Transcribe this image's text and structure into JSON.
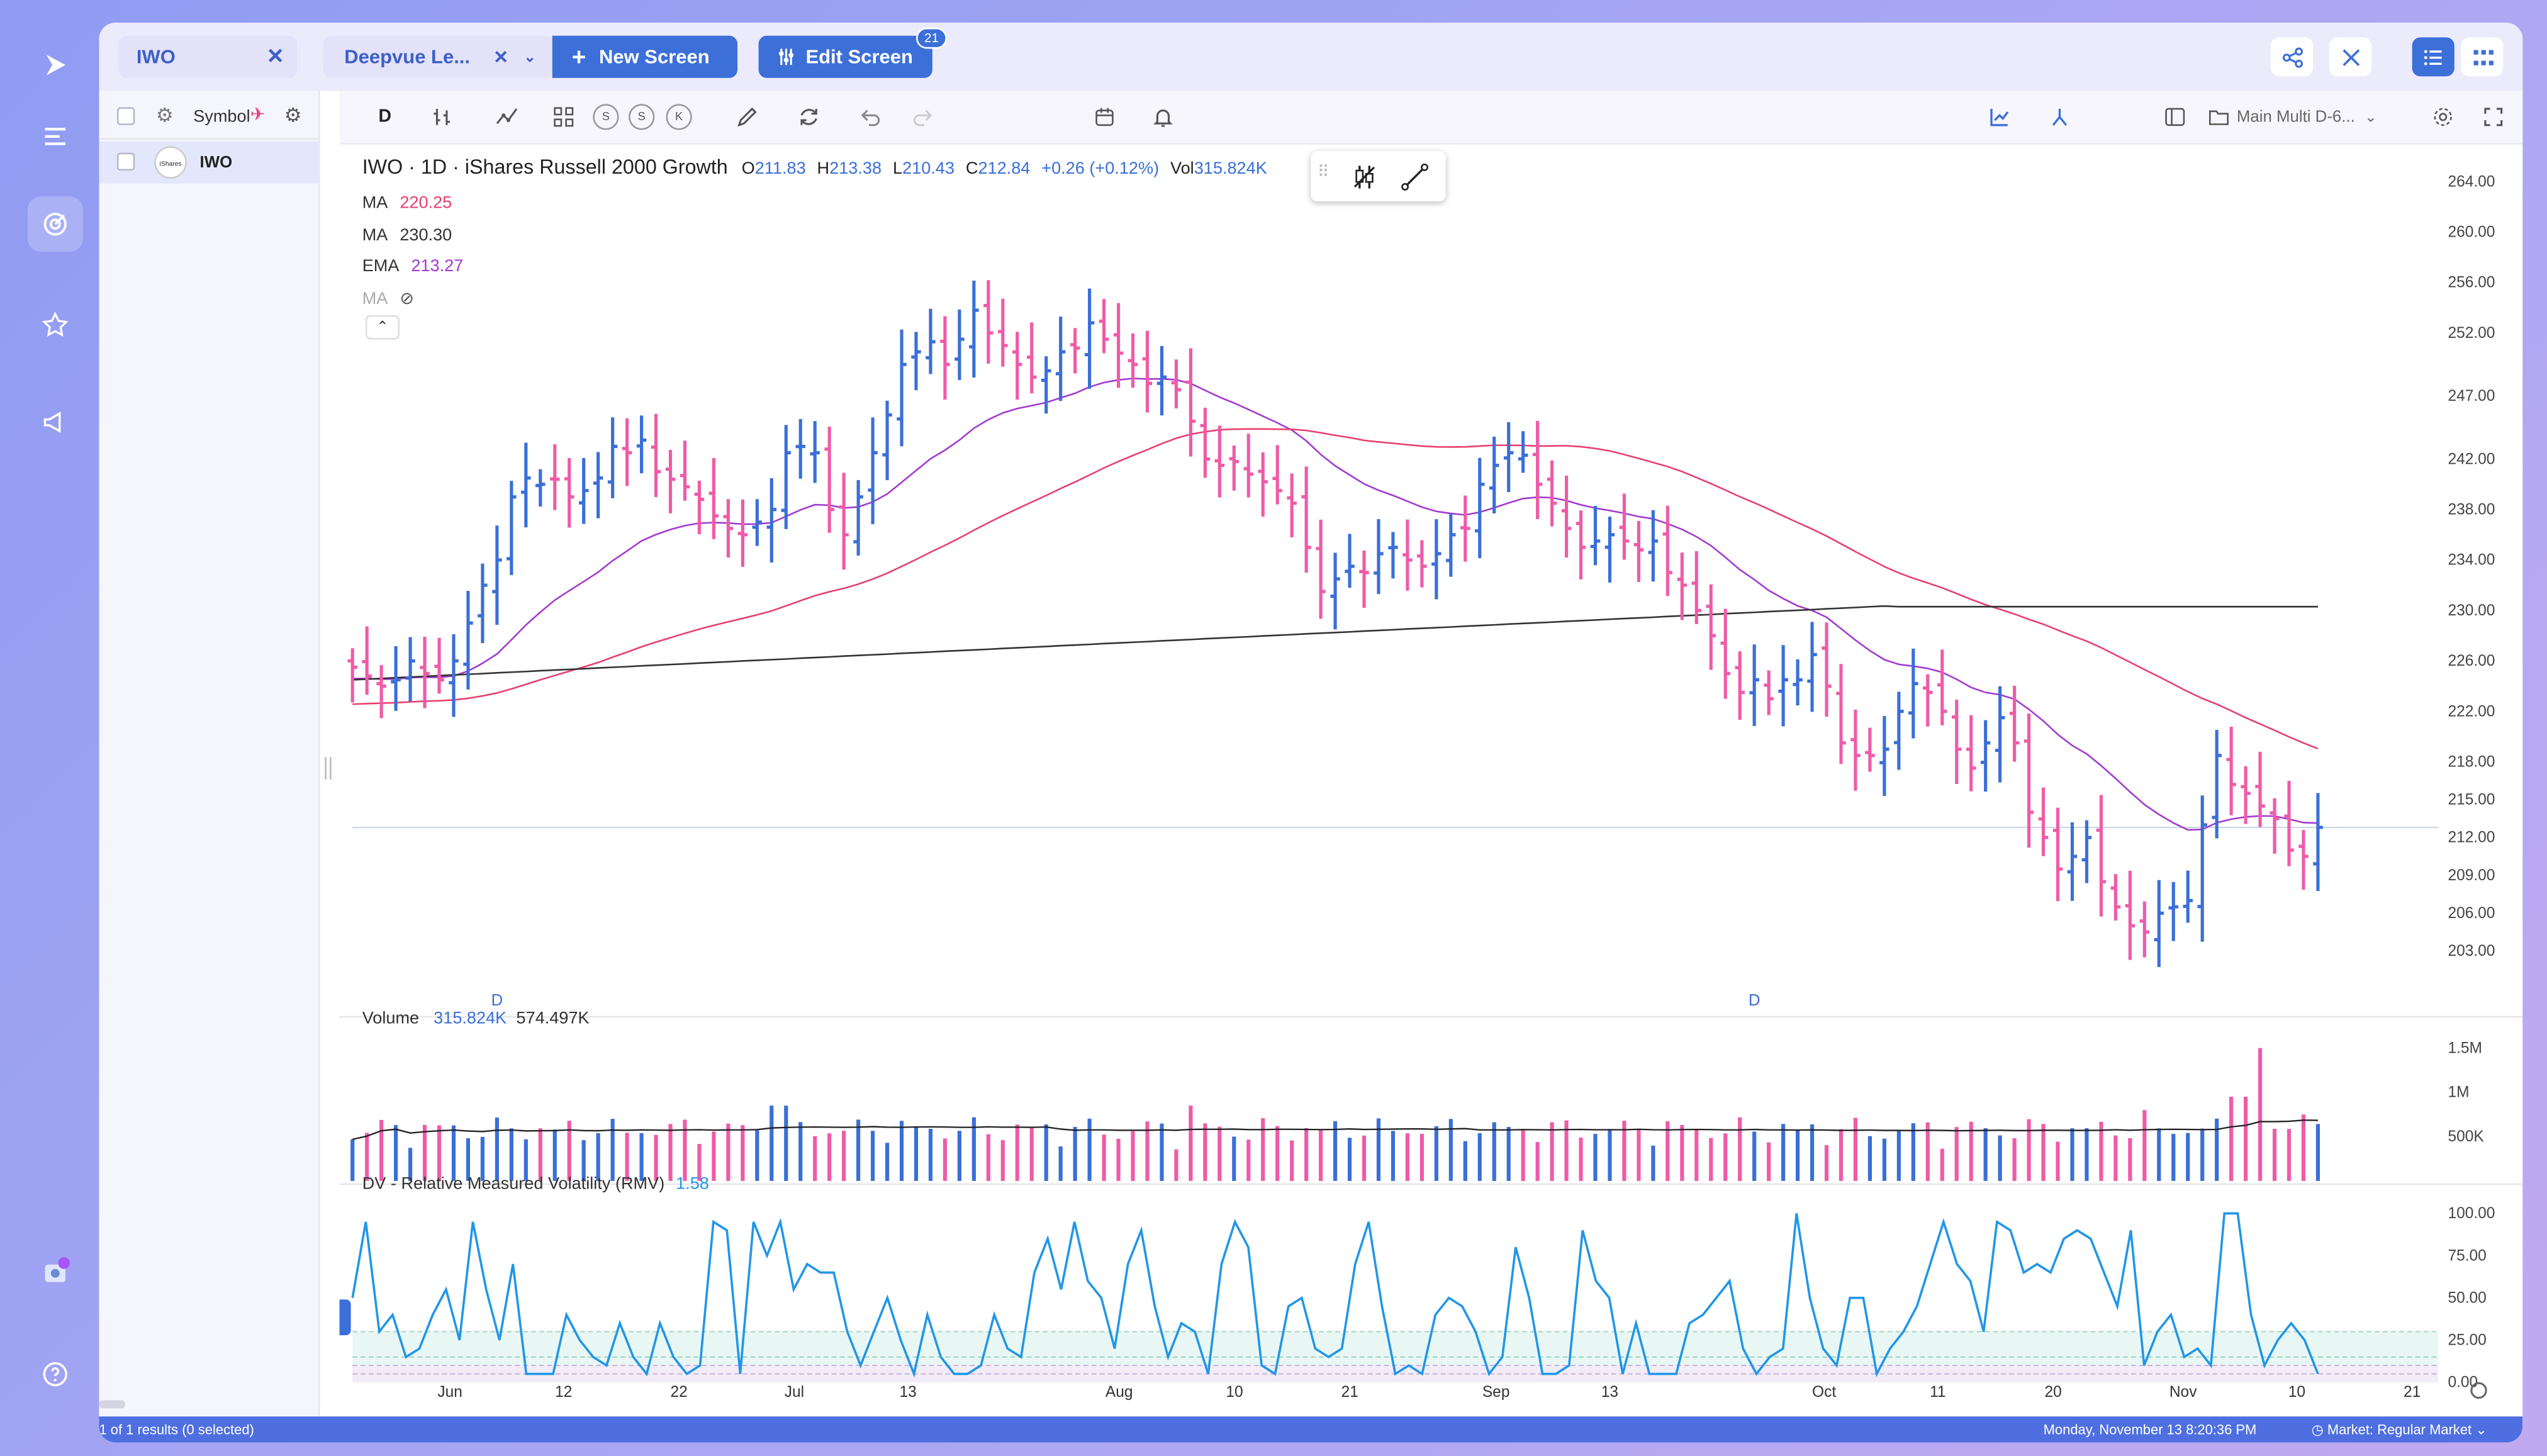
{
  "header": {
    "symbol_tab": "IWO",
    "screen_tab": "Deepvue Le...",
    "new_screen": "New Screen",
    "edit_screen": "Edit Screen",
    "edit_badge": "21"
  },
  "list": {
    "header": "Symbol",
    "rows": [
      {
        "symbol": "IWO",
        "logo": "iShares"
      }
    ],
    "footer": "1 of 1 results (0 selected)"
  },
  "toolbar": {
    "interval": "D",
    "layout_name": "Main Multi D-6...",
    "s1": "S",
    "s2": "S",
    "k": "K"
  },
  "legend": {
    "title": "IWO · 1D · iShares Russell 2000 Growth",
    "o_label": "O",
    "o": "211.83",
    "h_label": "H",
    "h": "213.38",
    "l_label": "L",
    "l": "210.43",
    "c_label": "C",
    "c": "212.84",
    "chg": "+0.26 (+0.12%)",
    "vol_label": "Vol",
    "vol": "315.824K",
    "ma1_label": "MA",
    "ma1": "220.25",
    "ma2_label": "MA",
    "ma2": "230.30",
    "ema_label": "EMA",
    "ema": "213.27",
    "ma3_label": "MA"
  },
  "volume": {
    "label": "Volume",
    "v1": "315.824K",
    "v2": "574.497K"
  },
  "rmv": {
    "label": "DV - Relative Measured Volatility (RMV)",
    "value": "1.58"
  },
  "price_axis": [
    "264.00",
    "260.00",
    "256.00",
    "252.00",
    "247.00",
    "242.00",
    "238.00",
    "234.00",
    "230.00",
    "226.00",
    "222.00",
    "218.00",
    "215.00",
    "212.00",
    "209.00",
    "206.00",
    "203.00"
  ],
  "volume_axis": [
    "1.5M",
    "1M",
    "500K"
  ],
  "rmv_axis": [
    "100.00",
    "75.00",
    "50.00",
    "25.00",
    "0.00"
  ],
  "time_axis": [
    "Jun",
    "12",
    "22",
    "Jul",
    "13",
    "Aug",
    "10",
    "21",
    "Sep",
    "13",
    "Oct",
    "11",
    "20",
    "Nov",
    "10",
    "21"
  ],
  "markers": [
    "D",
    "D"
  ],
  "status": {
    "datetime": "Monday, November 13 8:20:36 PM",
    "market": "Market: Regular Market"
  },
  "colors": {
    "up": "#3a6fd8",
    "down": "#ef5ba8",
    "ma": "#e83f6f",
    "ema": "#a23ad0",
    "ma200": "#333333",
    "rmv": "#2196e8",
    "accent": "#3d6fd9"
  },
  "chart_data": [
    {
      "type": "ohlc",
      "title": "IWO · 1D · iShares Russell 2000 Growth",
      "y_range": [
        201,
        265
      ],
      "series": [
        {
          "name": "MA",
          "value": "220.25"
        },
        {
          "name": "MA",
          "value": "230.30"
        },
        {
          "name": "EMA",
          "value": "213.27"
        }
      ],
      "x_ticks": [
        "Jun",
        "12",
        "22",
        "Jul",
        "13",
        "Aug",
        "10",
        "21",
        "Sep",
        "13",
        "Oct",
        "11",
        "20",
        "Nov",
        "10",
        "21"
      ],
      "close": [
        225.5,
        224.8,
        224,
        224.5,
        226,
        225,
        224.5,
        226,
        229,
        232,
        234,
        239,
        240.5,
        240,
        240.4,
        239,
        239.5,
        240.5,
        243,
        242.5,
        243.5,
        241,
        240.4,
        239.8,
        238.8,
        237.5,
        236.5,
        236,
        237,
        238,
        242.5,
        243,
        242.5,
        238,
        236,
        239,
        242.5,
        245.5,
        249.5,
        250.5,
        251.3,
        249.5,
        251.5,
        253.8,
        252,
        251,
        249.5,
        248.5,
        249,
        250.5,
        250.8,
        252.8,
        251.5,
        250.4,
        249.5,
        248,
        248.5,
        247.5,
        245,
        242,
        241.5,
        241.8,
        240.8,
        240.2,
        239.5,
        238.5,
        235,
        231.5,
        232.5,
        233.5,
        233,
        234.5,
        235,
        234,
        233.5,
        234.5,
        236,
        236.5,
        240,
        241.5,
        242.5,
        242.3,
        240,
        238.5,
        236.5,
        235,
        235.5,
        236,
        235.5,
        234.8,
        235.5,
        233,
        232,
        230,
        228,
        225,
        223.5,
        224.5,
        223,
        224.5,
        224.5,
        226.5,
        224,
        219.5,
        218.5,
        218.5,
        219,
        222,
        224.2,
        223.5,
        222,
        219,
        217.5,
        219.5,
        221.5,
        219.5,
        214,
        212,
        209.5,
        210.5,
        212,
        208.5,
        206.5,
        205,
        204.5,
        206,
        206.5,
        207,
        213,
        218.5,
        216.2,
        215.5,
        214.5,
        213.5,
        211,
        210.5,
        212.8
      ]
    },
    {
      "type": "bar",
      "title": "Volume",
      "series": [
        {
          "name": "Volume",
          "value": "315.824K"
        },
        {
          "name": "",
          "value": "574.497K"
        }
      ],
      "y_ticks": [
        "1.5M",
        "1M",
        "500K"
      ]
    },
    {
      "type": "line",
      "title": "DV - Relative Measured Volatility (RMV)",
      "value": "1.58",
      "y_range": [
        0,
        100
      ],
      "y_ticks": [
        "100.00",
        "75.00",
        "50.00",
        "25.00",
        "0.00"
      ],
      "values": [
        50,
        95,
        30,
        40,
        15,
        20,
        40,
        55,
        25,
        95,
        55,
        25,
        70,
        5,
        5,
        5,
        40,
        25,
        15,
        10,
        35,
        15,
        5,
        35,
        15,
        5,
        10,
        95,
        90,
        5,
        95,
        75,
        95,
        55,
        70,
        65,
        65,
        30,
        10,
        30,
        50,
        25,
        5,
        40,
        15,
        5,
        5,
        10,
        40,
        20,
        15,
        65,
        85,
        55,
        95,
        60,
        50,
        20,
        70,
        90,
        45,
        15,
        35,
        30,
        5,
        70,
        95,
        80,
        10,
        5,
        45,
        50,
        20,
        15,
        20,
        70,
        95,
        45,
        5,
        10,
        5,
        40,
        50,
        45,
        30,
        5,
        15,
        80,
        50,
        5,
        5,
        10,
        90,
        60,
        50,
        5,
        35,
        5,
        5,
        5,
        35,
        40,
        50,
        60,
        20,
        5,
        15,
        20,
        100,
        50,
        20,
        10,
        50,
        50,
        5,
        20,
        30,
        45,
        70,
        95,
        70,
        60,
        30,
        95,
        90,
        65,
        70,
        65,
        85,
        90,
        85,
        65,
        45,
        90,
        10,
        30,
        40,
        15,
        20,
        10,
        100,
        100,
        40,
        10,
        25,
        35,
        25,
        5
      ]
    }
  ]
}
